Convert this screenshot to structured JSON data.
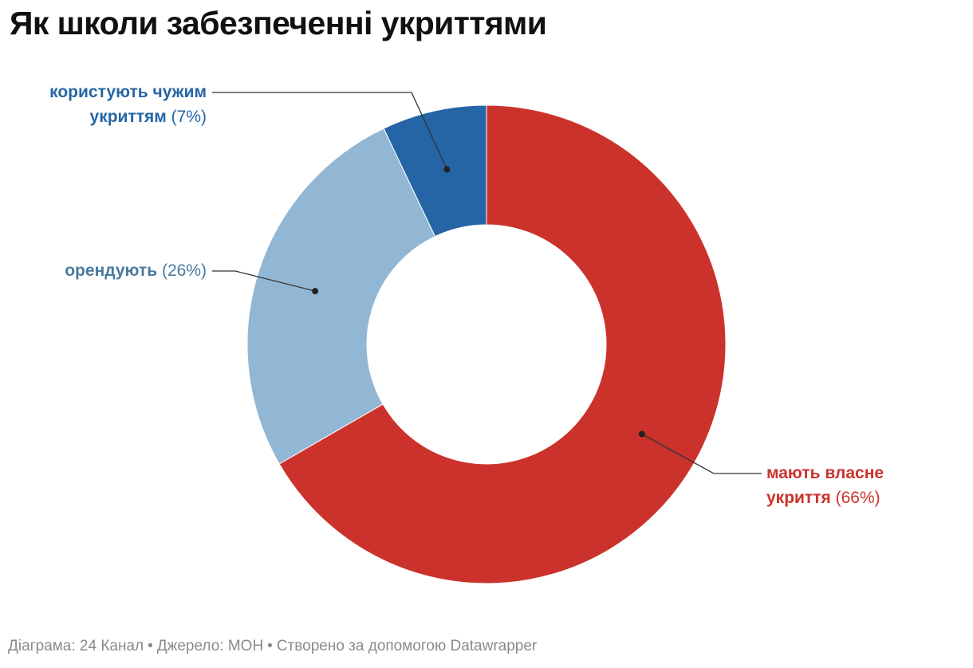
{
  "chart_data": {
    "type": "pie",
    "variant": "donut",
    "title": "Як школи забезпеченні укриттями",
    "slices": [
      {
        "name": "мають власне укриття",
        "line1": "мають власне",
        "line2": "укриття",
        "value": 66,
        "pct_text": "(66%)",
        "color": "#cc322c"
      },
      {
        "name": "орендують",
        "line1": "",
        "line2": "орендують",
        "value": 26,
        "pct_text": "(26%)",
        "color": "#92b7d5",
        "label_color": "#4b7a9e"
      },
      {
        "name": "користують чужим укриттям",
        "line1": "користують чужим",
        "line2": "укриттям",
        "value": 7,
        "pct_text": "(7%)",
        "color": "#2565a6"
      }
    ]
  },
  "footer": {
    "chart_credit": "Діаграма: 24 Канал",
    "source": "Джерело: МОН",
    "made_with": "Створено за допомогою Datawrapper",
    "separator": "•"
  }
}
